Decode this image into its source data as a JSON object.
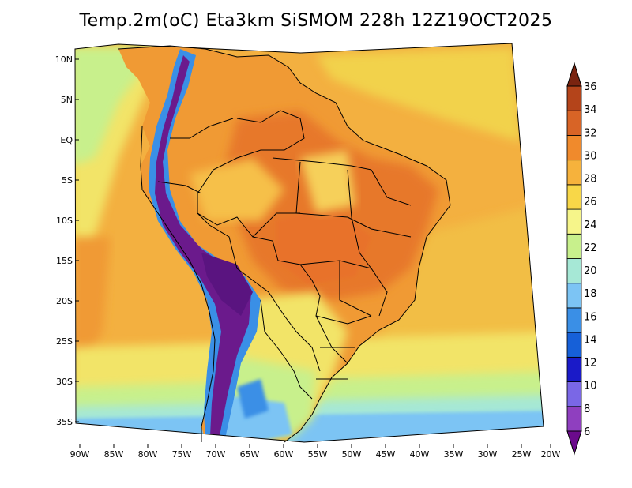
{
  "title": "Temp.2m(oC) Eta3km SiSMOM 228h 12Z19OCT2025",
  "axes": {
    "lat_labels": [
      "10N",
      "5N",
      "EQ",
      "5S",
      "10S",
      "15S",
      "20S",
      "25S",
      "30S",
      "35S"
    ],
    "lon_labels": [
      "90W",
      "85W",
      "80W",
      "75W",
      "70W",
      "65W",
      "60W",
      "55W",
      "50W",
      "45W",
      "40W",
      "35W",
      "30W",
      "25W",
      "20W"
    ]
  },
  "colorbar": {
    "labels": [
      "6",
      "8",
      "10",
      "12",
      "14",
      "16",
      "18",
      "20",
      "22",
      "24",
      "26",
      "28",
      "30",
      "32",
      "34",
      "36"
    ],
    "colors": [
      "#6b0a8c",
      "#8f3fbf",
      "#7a67e6",
      "#1a1ac8",
      "#1660d8",
      "#3a8fe6",
      "#7cc4f4",
      "#a6e8d6",
      "#c8f08c",
      "#f6f58a",
      "#f8d748",
      "#f6b23c",
      "#f08a2c",
      "#d86426",
      "#b4441a",
      "#7a2410"
    ]
  },
  "map": {
    "field": "Temp.2m",
    "units": "oC",
    "colors": {
      "ocean_cool": "#b8ec9c",
      "ocean_mild": "#f2e468",
      "ocean_warm": "#f3b040",
      "land_warm": "#f09a34",
      "land_hot": "#e7782c",
      "andes_cold": "#6b1a8c",
      "andes_mid": "#3a5ee0",
      "patagonia": "#7cc4f4",
      "southern_ocean": "#6aaef0"
    }
  }
}
